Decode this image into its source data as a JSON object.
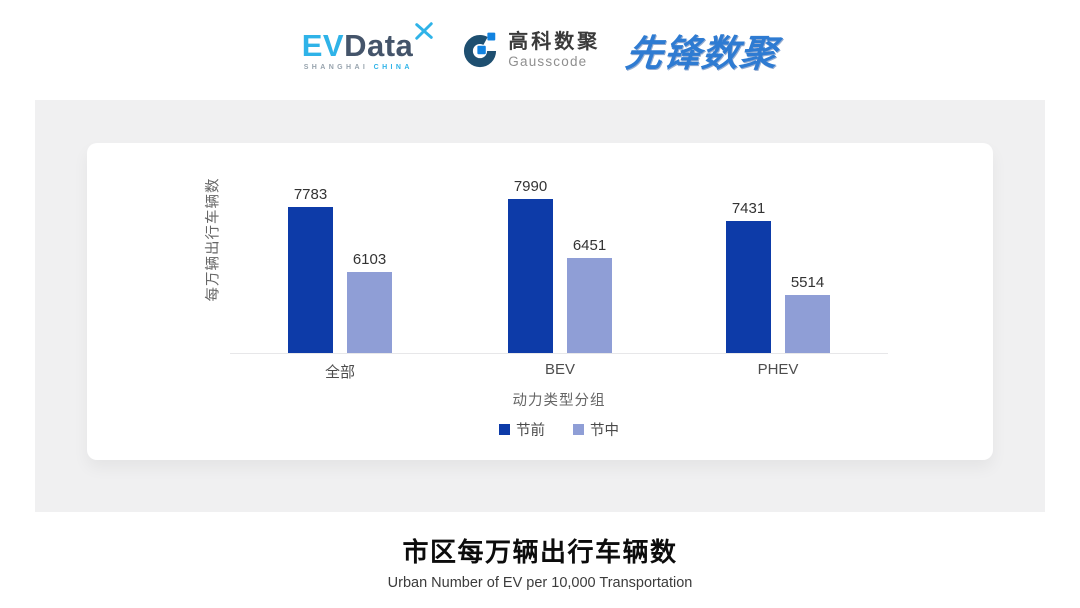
{
  "header": {
    "evdata_logo": {
      "ev": "EV",
      "data": "Data",
      "sub_left": "SHANGHAI",
      "sub_right": "CHINA"
    },
    "gausscode_logo": {
      "cn": "高科数聚",
      "en": "Gausscode"
    },
    "xianfeng_logo": {
      "text": "先锋数聚"
    }
  },
  "brand": {
    "evdata_cyan": "#2FB3E8",
    "evdata_dark": "#44546A",
    "gausscode_blue": "#1283E0",
    "gausscode_dark": "#1E4F70",
    "xianfeng_blue": "#2E7BD2"
  },
  "chart_data": {
    "type": "bar",
    "title": "市区每万辆出行车辆数",
    "subtitle": "Urban Number of EV per 10,000 Transportation",
    "xlabel": "动力类型分组",
    "ylabel": "每万辆出行车辆数",
    "categories": [
      "全部",
      "BEV",
      "PHEV"
    ],
    "series": [
      {
        "name": "节前",
        "values": [
          7783,
          7990,
          7431
        ]
      },
      {
        "name": "节中",
        "values": [
          6103,
          6451,
          5514
        ]
      }
    ],
    "ylim": [
      4000,
      8500
    ],
    "colors": [
      "#0D3BA8",
      "#8F9ED6"
    ],
    "legend_position": "bottom",
    "grid": false
  }
}
